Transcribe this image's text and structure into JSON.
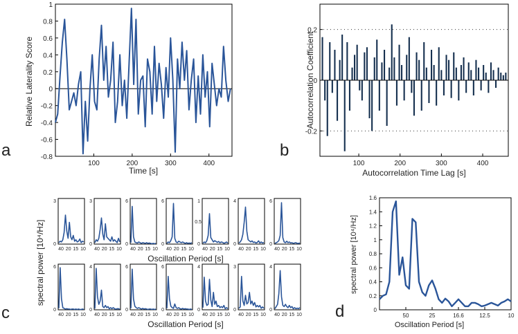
{
  "panel_labels": {
    "a": "a",
    "b": "b",
    "c": "c",
    "d": "d"
  },
  "colors": {
    "series": "#2a5599",
    "bars": "#16304f",
    "axis": "#000000"
  },
  "chart_data": [
    {
      "id": "a",
      "type": "line",
      "xlabel": "Time [s]",
      "ylabel": "Relative Laterality Score",
      "xlim": [
        0,
        460
      ],
      "ylim": [
        -0.8,
        1
      ],
      "xticks": [
        100,
        200,
        300,
        400
      ],
      "yticks": [
        -0.8,
        -0.6,
        -0.4,
        -0.2,
        0,
        0.2,
        0.4,
        0.6,
        0.8,
        1
      ],
      "ytick_labels": [
        "-0.8",
        "-0.6",
        "-0.4",
        "-0.2",
        "0",
        "0.2",
        "0.4",
        "0.6",
        "0.8",
        "1"
      ],
      "zero_line": true,
      "x": [
        0,
        6,
        12,
        18,
        24,
        30,
        36,
        42,
        48,
        54,
        60,
        66,
        72,
        78,
        84,
        90,
        96,
        102,
        108,
        114,
        120,
        126,
        132,
        138,
        144,
        150,
        156,
        162,
        168,
        174,
        180,
        186,
        192,
        198,
        204,
        210,
        216,
        222,
        228,
        234,
        240,
        246,
        252,
        258,
        264,
        270,
        276,
        282,
        288,
        294,
        300,
        306,
        312,
        318,
        324,
        330,
        336,
        342,
        348,
        354,
        360,
        366,
        372,
        378,
        384,
        390,
        396,
        402,
        408,
        414,
        420,
        426,
        432,
        438,
        444,
        450,
        456
      ],
      "y": [
        -0.4,
        -0.3,
        0.15,
        0.55,
        0.82,
        0.35,
        -0.25,
        -0.15,
        -0.05,
        -0.2,
        0.05,
        0.2,
        -0.77,
        -0.15,
        -0.62,
        0.0,
        0.4,
        -0.15,
        -0.25,
        0.35,
        0.75,
        0.1,
        0.5,
        -0.1,
        0.1,
        0.55,
        -0.4,
        -0.15,
        0.4,
        -0.2,
        0.1,
        -0.35,
        0.3,
        0.95,
        0.05,
        0.82,
        -0.3,
        0.1,
        0.15,
        -0.45,
        0.35,
        0.2,
        -0.3,
        0.5,
        -0.15,
        0.3,
        0.05,
        -0.35,
        0.25,
        -0.1,
        0.6,
        0.1,
        -0.75,
        0.35,
        0.0,
        0.55,
        0.1,
        0.45,
        -0.25,
        0.1,
        0.35,
        -0.4,
        0.15,
        -0.3,
        0.4,
        -0.1,
        0.2,
        -0.45,
        0.3,
        0.05,
        -0.2,
        0.0,
        -0.1,
        0.5,
        0.1,
        -0.15,
        0.0
      ]
    },
    {
      "id": "b",
      "type": "bar",
      "xlabel": "Autocorrelation Time Lag [s]",
      "ylabel": "Autocorrelation Coefficient",
      "xlim": [
        6,
        462
      ],
      "ylim": [
        -0.3,
        0.3
      ],
      "xticks": [
        100,
        200,
        300,
        400
      ],
      "yticks": [
        -0.2,
        0,
        0.2
      ],
      "ytick_labels": [
        "-0.2",
        "0",
        "0.2"
      ],
      "threshold_lines": [
        0.2,
        -0.2
      ],
      "bar_width": 3,
      "x": [
        12,
        18,
        24,
        30,
        36,
        42,
        48,
        54,
        60,
        66,
        72,
        78,
        84,
        90,
        96,
        102,
        108,
        114,
        120,
        126,
        132,
        138,
        144,
        150,
        156,
        162,
        168,
        174,
        180,
        186,
        192,
        198,
        204,
        210,
        216,
        222,
        228,
        234,
        240,
        246,
        252,
        258,
        264,
        270,
        276,
        282,
        288,
        294,
        300,
        306,
        312,
        318,
        324,
        330,
        336,
        342,
        348,
        354,
        360,
        366,
        372,
        378,
        384,
        390,
        396,
        402,
        408,
        414,
        420,
        426,
        432,
        438,
        444,
        450,
        456
      ],
      "values": [
        0.17,
        -0.08,
        -0.22,
        0.15,
        -0.05,
        0.12,
        -0.16,
        0.08,
        0.18,
        -0.28,
        0.15,
        -0.12,
        0.05,
        0.1,
        0.14,
        -0.04,
        -0.08,
        0.11,
        0.13,
        -0.15,
        -0.2,
        0.09,
        0.16,
        -0.12,
        0.07,
        0.12,
        -0.18,
        0.05,
        0.22,
        0.09,
        -0.1,
        0.14,
        0.06,
        -0.08,
        0.1,
        0.17,
        -0.05,
        -0.14,
        0.11,
        0.08,
        -0.12,
        0.15,
        0.05,
        -0.09,
        0.12,
        0.06,
        -0.1,
        0.13,
        0.04,
        -0.06,
        0.1,
        0.08,
        -0.07,
        0.11,
        0.05,
        -0.08,
        0.06,
        0.09,
        -0.05,
        0.07,
        0.04,
        -0.06,
        0.08,
        0.05,
        -0.04,
        0.06,
        0.03,
        -0.05,
        0.07,
        0.04,
        -0.03,
        0.05,
        0.03,
        0.02,
        0.03
      ]
    },
    {
      "id": "c",
      "type": "line",
      "layout": "small-multiples 2x7",
      "ylabel": "spectral power [10⁴/Hz]",
      "xlabel_row1": "Oscillation Period [s]",
      "xlabel_row2": "Oscillation Period [s]",
      "xtick_labels": [
        "40",
        "20",
        "15",
        "10"
      ],
      "panels": [
        {
          "ymax_label": "3",
          "ymin_label": "0",
          "ymid_label": "",
          "values": [
            0.1,
            0.2,
            0.15,
            0.3,
            0.8,
            2.0,
            0.9,
            0.4,
            1.5,
            0.5,
            0.3,
            0.6,
            0.2,
            0.3,
            0.15,
            0.2,
            0.35,
            0.1,
            0.2,
            0.15
          ]
        },
        {
          "ymax_label": "3",
          "ymin_label": "0",
          "ymid_label": "",
          "values": [
            0.1,
            0.3,
            0.2,
            0.4,
            1.0,
            1.8,
            0.7,
            0.3,
            1.4,
            0.5,
            0.4,
            0.3,
            0.2,
            0.5,
            0.2,
            0.3,
            0.2,
            0.1,
            0.4,
            0.15
          ]
        },
        {
          "ymax_label": "6",
          "ymin_label": "0",
          "ymid_label": "",
          "values": [
            0.2,
            5.2,
            1.0,
            0.3,
            0.2,
            0.15,
            0.3,
            0.2,
            0.1,
            0.2,
            0.15,
            0.1,
            0.2,
            0.1,
            0.15,
            0.1,
            0.05,
            0.1,
            0.05,
            0.1
          ]
        },
        {
          "ymax_label": "6",
          "ymin_label": "0",
          "ymid_label": "",
          "values": [
            0.1,
            0.3,
            0.2,
            0.5,
            1.0,
            5.6,
            0.8,
            0.3,
            0.2,
            0.4,
            0.3,
            0.2,
            0.3,
            0.2,
            0.1,
            0.2,
            0.1,
            0.15,
            0.1,
            0.2
          ]
        },
        {
          "ymax_label": "1",
          "ymin_label": "0",
          "ymid_label": "0.5",
          "values": [
            0.02,
            0.05,
            0.03,
            0.08,
            0.2,
            0.7,
            0.15,
            0.1,
            0.05,
            0.08,
            0.06,
            0.04,
            0.06,
            0.03,
            0.05,
            0.04,
            0.02,
            0.03,
            0.05,
            0.02
          ]
        },
        {
          "ymax_label": "4",
          "ymin_label": "0",
          "ymid_label": "",
          "values": [
            0.1,
            0.2,
            0.4,
            0.9,
            2.0,
            3.4,
            1.2,
            0.4,
            0.3,
            0.2,
            0.3,
            0.15,
            0.2,
            0.1,
            0.15,
            0.3,
            0.1,
            0.2,
            0.1,
            0.15
          ]
        },
        {
          "ymax_label": "6",
          "ymin_label": "0",
          "ymid_label": "",
          "values": [
            0.1,
            0.2,
            0.3,
            0.5,
            1.2,
            5.7,
            0.9,
            0.3,
            0.2,
            0.4,
            0.2,
            0.3,
            0.15,
            0.2,
            0.1,
            0.15,
            0.2,
            0.1,
            0.1,
            0.15
          ]
        },
        {
          "ymax_label": "6",
          "ymin_label": "0",
          "ymid_label": "",
          "values": [
            0.2,
            5.8,
            1.5,
            0.3,
            0.2,
            0.1,
            0.15,
            0.1,
            0.1,
            0.05,
            0.1,
            0.1,
            0.05,
            0.1,
            0.05,
            0.1,
            0.05,
            0.05,
            0.1,
            0.05
          ]
        },
        {
          "ymax_label": "4",
          "ymin_label": "0",
          "ymid_label": "",
          "values": [
            0.1,
            3.8,
            1.2,
            0.5,
            0.8,
            1.8,
            0.3,
            0.2,
            0.4,
            0.2,
            0.3,
            0.1,
            0.2,
            0.1,
            0.2,
            0.1,
            0.05,
            0.1,
            0.1,
            0.05
          ]
        },
        {
          "ymax_label": "6",
          "ymin_label": "0",
          "ymid_label": "",
          "values": [
            0.2,
            5.6,
            1.5,
            0.5,
            0.3,
            0.2,
            0.3,
            0.2,
            0.1,
            0.2,
            0.1,
            0.15,
            0.1,
            0.05,
            0.1,
            0.1,
            0.05,
            0.1,
            0.05,
            0.1
          ]
        },
        {
          "ymax_label": "6",
          "ymin_label": "0",
          "ymid_label": "",
          "values": [
            0.2,
            4.6,
            1.5,
            0.5,
            0.3,
            0.2,
            0.8,
            0.3,
            0.2,
            0.3,
            0.15,
            0.1,
            0.2,
            0.1,
            0.15,
            0.1,
            0.1,
            0.05,
            0.1,
            0.05
          ]
        },
        {
          "ymax_label": "4",
          "ymin_label": "0",
          "ymid_label": "",
          "values": [
            0.2,
            3.0,
            0.8,
            0.4,
            0.5,
            2.8,
            0.9,
            0.3,
            1.6,
            0.5,
            0.8,
            0.3,
            0.4,
            0.2,
            0.3,
            0.2,
            0.4,
            0.1,
            0.2,
            0.1
          ]
        },
        {
          "ymax_label": "3",
          "ymin_label": "0",
          "ymid_label": "",
          "values": [
            0.1,
            0.2,
            2.3,
            0.6,
            0.3,
            1.0,
            0.4,
            0.5,
            1.2,
            0.4,
            0.6,
            0.3,
            0.5,
            0.2,
            0.3,
            0.2,
            0.3,
            0.1,
            0.2,
            0.1
          ]
        },
        {
          "ymax_label": "4",
          "ymin_label": "0",
          "ymid_label": "",
          "values": [
            0.1,
            0.3,
            0.5,
            1.5,
            3.6,
            1.2,
            0.4,
            0.3,
            0.5,
            0.3,
            0.2,
            0.4,
            0.2,
            0.3,
            0.1,
            0.2,
            0.1,
            0.15,
            0.1,
            0.2
          ]
        }
      ]
    },
    {
      "id": "d",
      "type": "line",
      "xlabel": "Oscillation Period [s]",
      "ylabel": "spectral power [10⁴/Hz]",
      "ylim": [
        0,
        1.6
      ],
      "yticks": [
        0,
        0.2,
        0.4,
        0.6,
        0.8,
        1,
        1.2,
        1.4,
        1.6
      ],
      "ytick_labels": [
        "0",
        "0.2",
        "0.4",
        "0.6",
        "0.8",
        "1",
        "1.2",
        "1.4",
        "1.6"
      ],
      "xlim": [
        0,
        20
      ],
      "xtick_positions": [
        4,
        8,
        12,
        16,
        20
      ],
      "xtick_labels": [
        "50",
        "25",
        "16.6",
        "12.5",
        "10"
      ],
      "x": [
        0,
        0.5,
        1,
        1.5,
        2,
        2.5,
        3,
        3.5,
        4,
        4.5,
        5,
        5.5,
        6,
        6.5,
        7,
        7.5,
        8,
        8.5,
        9,
        9.5,
        10,
        10.5,
        11,
        11.5,
        12,
        12.5,
        13,
        13.5,
        14,
        14.5,
        15,
        15.5,
        16,
        16.5,
        17,
        17.5,
        18,
        18.5,
        19,
        19.5,
        20
      ],
      "y": [
        0.15,
        0.2,
        0.22,
        0.4,
        1.4,
        1.55,
        0.5,
        0.75,
        0.35,
        0.3,
        1.3,
        1.25,
        0.4,
        0.25,
        0.2,
        0.35,
        0.42,
        0.3,
        0.15,
        0.1,
        0.16,
        0.12,
        0.05,
        0.1,
        0.15,
        0.1,
        0.05,
        0.05,
        0.1,
        0.1,
        0.08,
        0.05,
        0.06,
        0.08,
        0.1,
        0.08,
        0.06,
        0.1,
        0.12,
        0.15,
        0.12
      ]
    }
  ]
}
